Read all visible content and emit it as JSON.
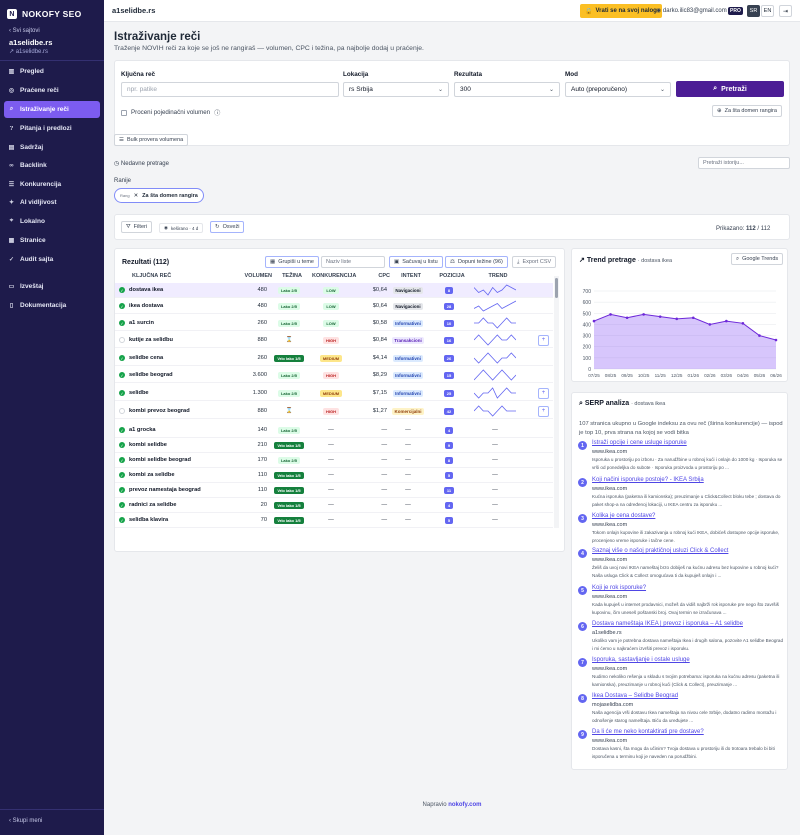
{
  "brand": {
    "name": "NOKOFY SEO",
    "logo_letter": "N"
  },
  "sidebar": {
    "back": "Svi sajtovi",
    "site_name": "a1selidbe.rs",
    "site_url": "a1selidbe.rs",
    "items": [
      {
        "label": "Pregled",
        "icon": "chart-bar-icon",
        "glyph": "▥"
      },
      {
        "label": "Praćene reči",
        "icon": "target-icon",
        "glyph": "◎"
      },
      {
        "label": "Istraživanje reči",
        "icon": "search-icon",
        "glyph": "⌕"
      },
      {
        "label": "Pitanja i predlozi",
        "icon": "help-icon",
        "glyph": "?"
      },
      {
        "label": "Sadržaj",
        "icon": "document-icon",
        "glyph": "▤"
      },
      {
        "label": "Backlink",
        "icon": "link-icon",
        "glyph": "∞"
      },
      {
        "label": "Konkurencija",
        "icon": "users-icon",
        "glyph": "☰"
      },
      {
        "label": "AI vidljivost",
        "icon": "sparkle-icon",
        "glyph": "✦"
      },
      {
        "label": "Lokalno",
        "icon": "pin-icon",
        "glyph": "⌖"
      },
      {
        "label": "Stranice",
        "icon": "pages-icon",
        "glyph": "▦"
      },
      {
        "label": "Audit sajta",
        "icon": "check-icon",
        "glyph": "✓"
      },
      {
        "label": "Izveštaj",
        "icon": "report-icon",
        "glyph": "▭"
      },
      {
        "label": "Dokumentacija",
        "icon": "book-icon",
        "glyph": "▯"
      }
    ],
    "collapse": "Skupi meni"
  },
  "topbar": {
    "domain": "a1selidbe.rs",
    "back_account": "Vrati se na svoj nalog",
    "user": "darko.ilic83@gmail.com",
    "plan": "PRO",
    "lang_sr": "SR",
    "lang_en": "EN",
    "logout_glyph": "⇥"
  },
  "page": {
    "title": "Istraživanje reči",
    "subtitle": "Traženje NOVIH reči za koje se još ne rangiraš — volumen, CPC i težina, pa najbolje dodaj u praćenje."
  },
  "form": {
    "keyword_label": "Ključna reč",
    "keyword_placeholder": "npr. patike",
    "location_label": "Lokacija",
    "location_value": "rs Srbija",
    "results_label": "Rezultata",
    "results_value": "300",
    "mode_label": "Mod",
    "mode_value": "Auto (preporučeno)",
    "search_button": "Pretraži",
    "volume_checkbox": "Proceni pojedinačni volumen",
    "domain_button": "Za šta domen rangira"
  },
  "bulk": {
    "button": "Bulk provera volumena"
  },
  "recent": {
    "label": "Nedavne pretrage",
    "search_placeholder": "Pretraži istoriju..."
  },
  "history": {
    "label": "Ranije",
    "tag": "Rang",
    "pill_label": "Za šta domen rangira"
  },
  "toolbar": {
    "filter": "Filteri",
    "chip": "keširano · 4 d",
    "refresh": "Osveži",
    "shown_label": "Prikazano:",
    "shown_count": "112",
    "shown_total": "/ 112"
  },
  "results": {
    "title": "Rezultati (112)",
    "group_button": "Grupiši u teme",
    "list_placeholder": "Naziv liste",
    "save_list": "Sačuvaj u listu",
    "fill_diff": "Dopuni težine (96)",
    "export": "Export CSV",
    "columns": [
      "KLJUČNA REČ",
      "VOLUMEN",
      "TEŽINA",
      "KONKURENCIJA",
      "CPC",
      "INTENT",
      "POZICIJA",
      "TREND"
    ],
    "rows": [
      {
        "kw": "dostava ikea",
        "vol": "480",
        "diff": "Lako 2/5",
        "dk": "lako",
        "comp": "LOW",
        "ck": "low",
        "cpc": "$0,64",
        "intent": "Navigacioni",
        "ik": "nav",
        "pos": "8",
        "checked": true,
        "sel": true,
        "act": false,
        "trend": [
          5,
          3,
          4,
          2,
          5,
          3,
          4,
          6,
          5,
          4
        ]
      },
      {
        "kw": "ikea dostava",
        "vol": "480",
        "diff": "Lako 2/5",
        "dk": "lako",
        "comp": "LOW",
        "ck": "low",
        "cpc": "$0,64",
        "intent": "Navigacioni",
        "ik": "nav",
        "pos": "28",
        "checked": true,
        "sel": false,
        "act": false,
        "trend": [
          3,
          4,
          2,
          3,
          4,
          5,
          3,
          4,
          5,
          6
        ]
      },
      {
        "kw": "a1 surcin",
        "vol": "260",
        "diff": "Lako 2/5",
        "dk": "lako",
        "comp": "LOW",
        "ck": "low",
        "cpc": "$0,58",
        "intent": "Informativni",
        "ik": "inf",
        "pos": "10",
        "checked": true,
        "sel": false,
        "act": false,
        "trend": [
          4,
          4,
          5,
          4,
          4,
          3,
          4,
          5,
          4,
          4
        ]
      },
      {
        "kw": "kutije za selidbu",
        "vol": "880",
        "diff": "⌛",
        "dk": "icon",
        "comp": "HIGH",
        "ck": "high",
        "cpc": "$0,84",
        "intent": "Transakcioni",
        "ik": "tr",
        "pos": "16",
        "checked": false,
        "sel": false,
        "act": true,
        "trend": [
          4,
          5,
          4,
          3,
          4,
          5,
          4,
          4,
          5,
          4
        ]
      },
      {
        "kw": "selidbe cena",
        "vol": "260",
        "diff": "Vrlo lako 1/5",
        "dk": "vl",
        "comp": "MEDIUM",
        "ck": "med",
        "cpc": "$4,14",
        "intent": "Informativni",
        "ik": "inf",
        "pos": "26",
        "checked": true,
        "sel": false,
        "act": false,
        "trend": [
          4,
          3,
          4,
          5,
          4,
          3,
          4,
          4,
          5,
          4
        ]
      },
      {
        "kw": "selidbe beograd",
        "vol": "3.600",
        "diff": "Lako 2/5",
        "dk": "lako",
        "comp": "HIGH",
        "ck": "high",
        "cpc": "$8,29",
        "intent": "Informativni",
        "ik": "inf",
        "pos": "15",
        "checked": true,
        "sel": false,
        "act": false,
        "trend": [
          3,
          4,
          5,
          4,
          3,
          4,
          5,
          4,
          3,
          4
        ]
      },
      {
        "kw": "selidbe",
        "vol": "1.300",
        "diff": "Lako 2/5",
        "dk": "lako",
        "comp": "MEDIUM",
        "ck": "med",
        "cpc": "$7,15",
        "intent": "Informativni",
        "ik": "inf",
        "pos": "25",
        "checked": true,
        "sel": false,
        "act": true,
        "trend": [
          4,
          3,
          4,
          4,
          5,
          3,
          4,
          5,
          4,
          4
        ]
      },
      {
        "kw": "kombi prevoz beograd",
        "vol": "880",
        "diff": "⌛",
        "dk": "icon",
        "comp": "HIGH",
        "ck": "high",
        "cpc": "$1,27",
        "intent": "Komercijalni",
        "ik": "kom",
        "pos": "42",
        "checked": false,
        "sel": false,
        "act": true,
        "trend": [
          4,
          5,
          4,
          4,
          3,
          4,
          5,
          4,
          4,
          4
        ]
      },
      {
        "kw": "a1 grocka",
        "vol": "140",
        "diff": "Lako 2/5",
        "dk": "lako",
        "comp": "—",
        "ck": "none",
        "cpc": "—",
        "intent": "—",
        "ik": "none",
        "pos": "4",
        "checked": true,
        "sel": false,
        "act": false,
        "trend": []
      },
      {
        "kw": "kombi selidbe",
        "vol": "210",
        "diff": "Vrlo lako 1/5",
        "dk": "vl",
        "comp": "—",
        "ck": "none",
        "cpc": "—",
        "intent": "—",
        "ik": "none",
        "pos": "9",
        "checked": true,
        "sel": false,
        "act": false,
        "trend": []
      },
      {
        "kw": "kombi selidbe beograd",
        "vol": "170",
        "diff": "Lako 2/5",
        "dk": "lako",
        "comp": "—",
        "ck": "none",
        "cpc": "—",
        "intent": "—",
        "ik": "none",
        "pos": "8",
        "checked": true,
        "sel": false,
        "act": false,
        "trend": []
      },
      {
        "kw": "kombi za selidbe",
        "vol": "110",
        "diff": "Vrlo lako 1/5",
        "dk": "vl",
        "comp": "—",
        "ck": "none",
        "cpc": "—",
        "intent": "—",
        "ik": "none",
        "pos": "5",
        "checked": true,
        "sel": false,
        "act": false,
        "trend": []
      },
      {
        "kw": "prevoz namestaja beograd",
        "vol": "110",
        "diff": "Vrlo lako 1/5",
        "dk": "vl",
        "comp": "—",
        "ck": "none",
        "cpc": "—",
        "intent": "—",
        "ik": "none",
        "pos": "11",
        "checked": true,
        "sel": false,
        "act": false,
        "trend": []
      },
      {
        "kw": "radnici za selidbe",
        "vol": "20",
        "diff": "Vrlo lako 1/5",
        "dk": "vl",
        "comp": "—",
        "ck": "none",
        "cpc": "—",
        "intent": "—",
        "ik": "none",
        "pos": "4",
        "checked": true,
        "sel": false,
        "act": false,
        "trend": []
      },
      {
        "kw": "selidba klavira",
        "vol": "70",
        "diff": "Vrlo lako 1/5",
        "dk": "vl",
        "comp": "—",
        "ck": "none",
        "cpc": "—",
        "intent": "—",
        "ik": "none",
        "pos": "5",
        "checked": true,
        "sel": false,
        "act": false,
        "trend": []
      }
    ]
  },
  "trend": {
    "title": "Trend pretrage",
    "kw": "· dostava ikea",
    "google_button": "Google Trends"
  },
  "chart_data": {
    "type": "area",
    "x": [
      "07/25",
      "08/25",
      "09/25",
      "10/25",
      "11/25",
      "12/25",
      "01/26",
      "02/26",
      "03/26",
      "04/26",
      "05/26",
      "06/26"
    ],
    "values": [
      430,
      490,
      460,
      490,
      470,
      450,
      460,
      400,
      430,
      410,
      300,
      260
    ],
    "ylim": [
      0,
      700
    ],
    "yticks": [
      "0",
      "100",
      "200",
      "300",
      "400",
      "500",
      "600",
      "700"
    ],
    "color": "#8b5cf6",
    "grid": true
  },
  "serp": {
    "title": "SERP analiza",
    "kw": "· dostava ikea",
    "summary": "107 stranica ukupno u Google indeksu za ovu reč (širina konkurencije) — ispod je top 10, prva strana na kojoj se vodi bitka",
    "items": [
      {
        "n": "1",
        "title": "Istraži opcije i cene usluge isporuke",
        "url": "www.ikea.com",
        "desc": "Isporuka u prostoriju po izboru · Za narudžbine u robnoj kući i onlajn do 1000 kg · Isporuka se vrši od ponedeljka do subote · Isporuka proizvoda u prostoriju po ..."
      },
      {
        "n": "2",
        "title": "Koji načini isporuke postoje? - IKEA Srbija",
        "url": "www.ikea.com",
        "desc": "Kućna isporuka (paketna ili kamionska); preuzimanje u Click&Collect bloku tebe ; dostava do paket shop-a na određenoj lokaciji, u IKEA centru za isporuku ..."
      },
      {
        "n": "3",
        "title": "Kolika je cena dostave?",
        "url": "www.ikea.com",
        "desc": "Tokom onlajn kupovine ili zakazivanja u robnoj kući IKEA, dobićeš dostupne opcije isporuke, procenjeno vreme isporuke i tačne cene."
      },
      {
        "n": "4",
        "title": "Saznaj više o našoj praktičnoj usluzi Click & Collect",
        "url": "www.ikea.com",
        "desc": "Želiš da uvoj novi IKEA nameštaj brzo dobiješ na kućnu adresu bez kupovine u robnoj kući? Naša usluga Click & Collect omogućava ti da kupuješ onlajn i ..."
      },
      {
        "n": "5",
        "title": "Koji je rok isporuke?",
        "url": "www.ikea.com",
        "desc": "Kada kupuješ u internet prodavnici, možeš da vidiš najbrži rok isporuke pre nego što završiš kupovinu, čim uneseš poštanski broj. Ovaj termin se izračunava ..."
      },
      {
        "n": "6",
        "title": "Dostava nameštaja IKEA | prevoz i isporuka – A1 selidbe",
        "url": "a1selidbe.rs",
        "desc": "Ukoliko vam je potrebna dostava nameštaja Ikea i drugih salona, pozovite A1 selidbe Beograd i mi ćemo u najkraćem izvršiti prevoz i isporuku."
      },
      {
        "n": "7",
        "title": "Isporuka, sastavljanje i ostale usluge",
        "url": "www.ikea.com",
        "desc": "Nudimo nekoliko rešenja u skladu s tvojim potrebama: isporuka na kućnu adresu (paketna ili kamionska), preuzimanje u robnoj kući (Click & Collect), preuzimanje ..."
      },
      {
        "n": "8",
        "title": "Ikea Dostava – Selidbe Beograd",
        "url": "mojaselidba.com",
        "desc": "Naša agencija vrši dostavu Ikea nameštaja na nivou cele Srbije, dodatno radimo montažu i odnošenje starog nameštaja. Biću da uređujete ..."
      },
      {
        "n": "9",
        "title": "Da li će me neko kontaktirati pre dostave?",
        "url": "www.ikea.com",
        "desc": "Dostava kasni, šta mogu da učinim? Tvoja dostava u prostoriju ili do trotoara trebalo bi biti isporučena u terminu koji je naveden na porudžbini."
      }
    ]
  },
  "footer": {
    "prefix": "Napravio",
    "brand": "nokofy.com"
  }
}
